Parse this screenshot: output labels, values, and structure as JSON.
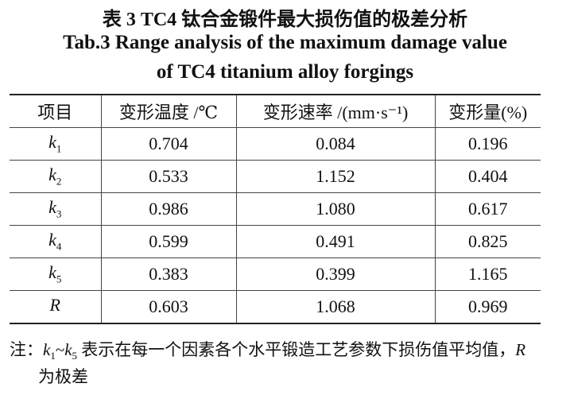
{
  "title": {
    "cn": "表 3  TC4 钛合金锻件最大损伤值的极差分析",
    "en_line1": "Tab.3  Range analysis of the maximum damage value",
    "en_line2": "of TC4 titanium alloy forgings"
  },
  "table": {
    "headers": [
      "项目",
      "变形温度 /℃",
      "变形速率 /(mm·s⁻¹)",
      "变形量(%)"
    ],
    "rows": [
      {
        "label": "k",
        "sub": "1",
        "values": [
          "0.704",
          "0.084",
          "0.196"
        ]
      },
      {
        "label": "k",
        "sub": "2",
        "values": [
          "0.533",
          "1.152",
          "0.404"
        ]
      },
      {
        "label": "k",
        "sub": "3",
        "values": [
          "0.986",
          "1.080",
          "0.617"
        ]
      },
      {
        "label": "k",
        "sub": "4",
        "values": [
          "0.599",
          "0.491",
          "0.825"
        ]
      },
      {
        "label": "k",
        "sub": "5",
        "values": [
          "0.383",
          "0.399",
          "1.165"
        ]
      },
      {
        "label": "R",
        "sub": "",
        "values": [
          "0.603",
          "1.068",
          "0.969"
        ]
      }
    ]
  },
  "note": {
    "prefix": "注：",
    "k_a": "k",
    "sub_a": "1",
    "tilde": "~",
    "k_b": "k",
    "sub_b": "5",
    "text1": " 表示在每一个因素各个水平锻造工艺参数下损伤值平均值，",
    "r": "R",
    "text2": "为极差"
  }
}
